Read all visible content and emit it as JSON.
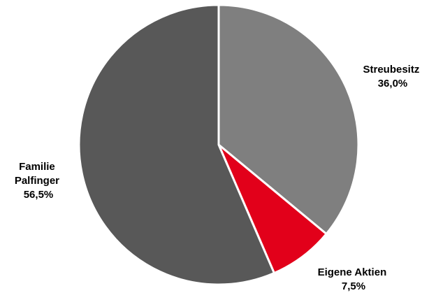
{
  "chart_data": {
    "type": "pie",
    "title": "",
    "start_angle_deg": 0,
    "direction": "clockwise",
    "slices": [
      {
        "label": "Streubesitz",
        "value": 36.0,
        "value_label": "36,0%",
        "color": "#7f7f7f"
      },
      {
        "label": "Eigene Aktien",
        "value": 7.5,
        "value_label": "7,5%",
        "color": "#e2001a"
      },
      {
        "label": "Familie Palfinger",
        "value": 56.5,
        "value_label": "56,5%",
        "color": "#585858"
      }
    ],
    "slice_border_color": "#ffffff",
    "label_lines": [
      [
        "Streubesitz",
        "36,0%"
      ],
      [
        "Eigene Aktien",
        "7,5%"
      ],
      [
        "Familie",
        "Palfinger",
        "56,5%"
      ]
    ]
  }
}
